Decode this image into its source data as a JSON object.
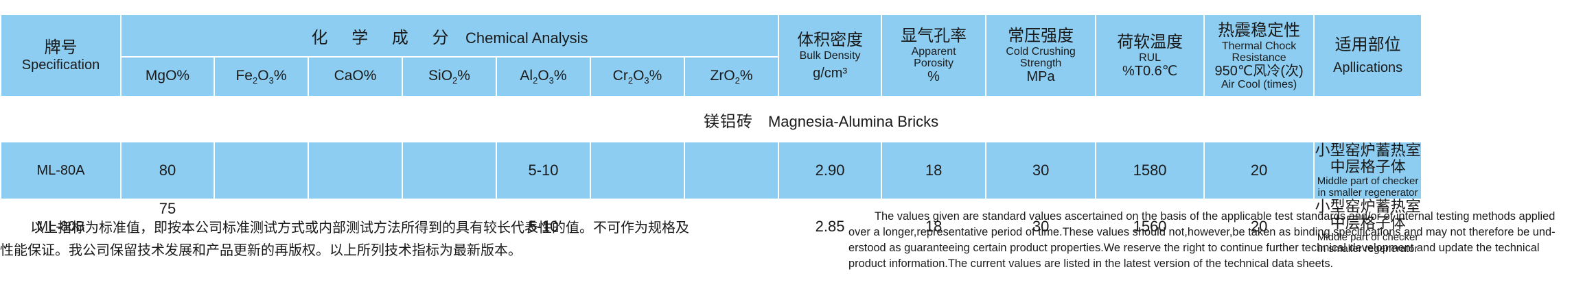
{
  "header": {
    "spec_zh": "牌号",
    "spec_en": "Specification",
    "chem_zh": "化 学 成 分",
    "chem_en": "Chemical Analysis",
    "elements": [
      {
        "base": "MgO",
        "sub1": "",
        "mid": "",
        "sub2": "",
        "tail": "%"
      },
      {
        "base": "Fe",
        "sub1": "2",
        "mid": "O",
        "sub2": "3",
        "tail": "%"
      },
      {
        "base": "CaO",
        "sub1": "",
        "mid": "",
        "sub2": "",
        "tail": "%"
      },
      {
        "base": "SiO",
        "sub1": "2",
        "mid": "",
        "sub2": "",
        "tail": "%"
      },
      {
        "base": "Al",
        "sub1": "2",
        "mid": "O",
        "sub2": "3",
        "tail": "%"
      },
      {
        "base": "Cr",
        "sub1": "2",
        "mid": "O",
        "sub2": "3",
        "tail": "%"
      },
      {
        "base": "ZrO",
        "sub1": "2",
        "mid": "",
        "sub2": "",
        "tail": "%"
      }
    ],
    "density_zh": "体积密度",
    "density_en": "Bulk Density",
    "density_unit": "g/cm³",
    "porosity_zh": "显气孔率",
    "porosity_en1": "Apparent",
    "porosity_en2": "Porosity",
    "porosity_unit": "%",
    "strength_zh": "常压强度",
    "strength_en1": "Cold Crushing",
    "strength_en2": "Strength",
    "strength_unit": "MPa",
    "rul_zh": "荷软温度",
    "rul_en": "RUL",
    "rul_unit": "%T0.6℃",
    "thermal_zh": "热震稳定性",
    "thermal_en1": "Thermal Chock",
    "thermal_en2": "Resistance",
    "thermal_cond": "950℃风冷(次)",
    "thermal_en3": "Air Cool (times)",
    "app_zh": "适用部位",
    "app_en": "Apllications"
  },
  "group": {
    "name_zh": "镁铝砖",
    "name_en": "Magnesia-Alumina Bricks"
  },
  "rows": [
    {
      "spec": "ML-80A",
      "mgo": "80",
      "fe2o3": "",
      "cao": "",
      "sio2": "",
      "al2o3": "5-10",
      "cr2o3": "",
      "zro2": "",
      "density": "2.90",
      "porosity": "18",
      "strength": "30",
      "rul": "1580",
      "thermal": "20",
      "app_zh": "小型窑炉蓄热室中层格子体",
      "app_en": "Middle part of checker in smaller regenerator"
    },
    {
      "spec": "ML-80B",
      "mgo": "75",
      "fe2o3": "",
      "cao": "",
      "sio2": "",
      "al2o3": "5-10",
      "cr2o3": "",
      "zro2": "",
      "density": "2.85",
      "porosity": "18",
      "strength": "30",
      "rul": "1560",
      "thermal": "20",
      "app_zh": "小型窑炉蓄热室中层格子体",
      "app_en": "Middle part of checker in smaller regenerator"
    }
  ],
  "notes": {
    "cn": "以上指标为标准值，即按本公司标准测试方式或内部测试方法所得到的具有较长代表性的值。不可作为规格及性能保证。我公司保留技术发展和产品更新的再版权。以上所列技术指标为最新版本。",
    "en": "The values given are standard values ascertained on  the basis of the applicable test standards and/or of internal testing  methods applied over a longer,representative period of time.These values  should not,however,be taken as binding specifications and may  not therefore be und-erstood as  guaranteeing certain product  properties.We reserve the right to continue further technical development and update the technical product information.The current values are listed in the latest version of the technical data sheets."
  },
  "colors": {
    "header_bg": "#8ccdf1",
    "highlight_row_bg": "#8ccdf1",
    "text": "#1a1a1a"
  }
}
